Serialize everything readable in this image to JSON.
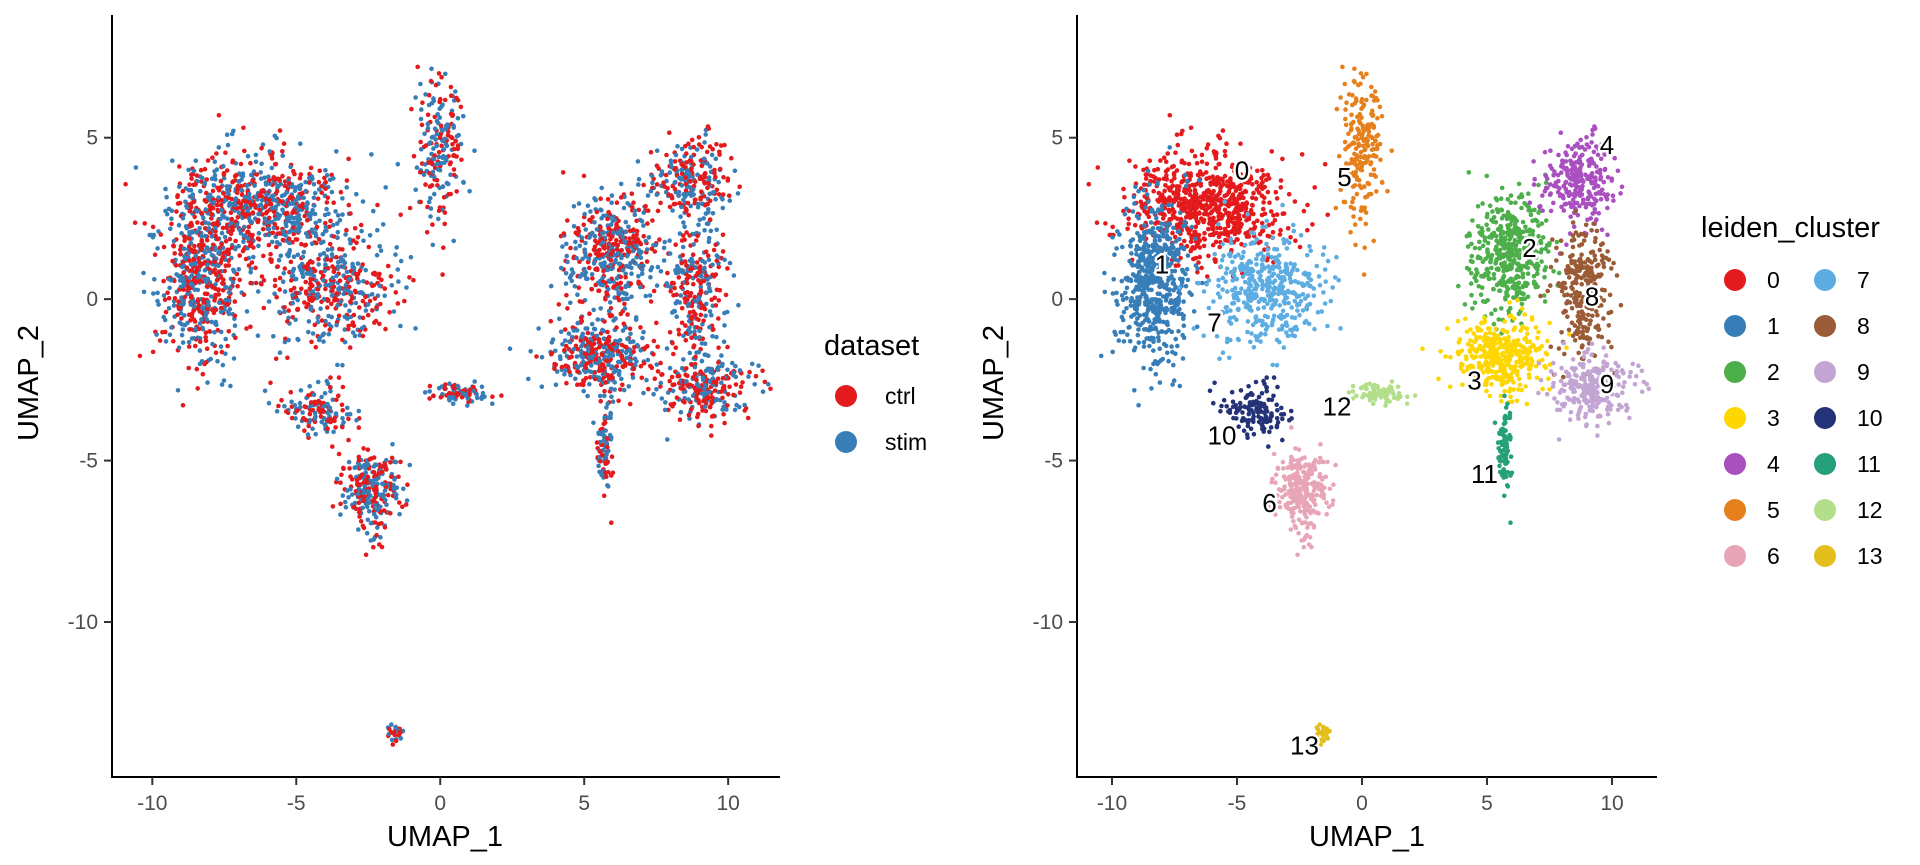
{
  "chart_data": [
    {
      "type": "scatter",
      "title": "",
      "xlabel": "UMAP_1",
      "ylabel": "UMAP_2",
      "xlim": [
        -11.4,
        11.8
      ],
      "ylim": [
        -14.8,
        8.8
      ],
      "xticks": [
        -10,
        -5,
        0,
        5,
        10
      ],
      "yticks": [
        -10,
        -5,
        0,
        5
      ],
      "xtick_labels": [
        "-10",
        "-5",
        "0",
        "5",
        "10"
      ],
      "ytick_labels": [
        "-10",
        "-5",
        "0",
        "5"
      ],
      "grid": false,
      "legend_position": "right",
      "legend_title": "dataset",
      "color_by": "dataset",
      "series": [
        {
          "name": "ctrl",
          "color": "#E41A1C"
        },
        {
          "name": "stim",
          "color": "#377EB8"
        }
      ],
      "regions": [
        {
          "name": "0",
          "center": [
            -6.2,
            2.9
          ],
          "spread": [
            1.9,
            1.0
          ],
          "count": 700
        },
        {
          "name": "1",
          "center": [
            -8.3,
            0.6
          ],
          "spread": [
            0.9,
            1.6
          ],
          "count": 550
        },
        {
          "name": "2",
          "center": [
            5.9,
            1.4
          ],
          "spread": [
            1.0,
            1.1
          ],
          "count": 450
        },
        {
          "name": "3",
          "center": [
            5.5,
            -1.8
          ],
          "spread": [
            1.2,
            0.7
          ],
          "count": 380
        },
        {
          "name": "4",
          "center": [
            8.7,
            3.6
          ],
          "spread": [
            0.8,
            0.9
          ],
          "count": 260
        },
        {
          "name": "5",
          "center": [
            0.0,
            4.6
          ],
          "spread": [
            0.5,
            1.4
          ],
          "count": 200
        },
        {
          "name": "6",
          "center": [
            -2.4,
            -5.9
          ],
          "spread": [
            0.6,
            0.8
          ],
          "count": 260
        },
        {
          "name": "7",
          "center": [
            -3.8,
            0.3
          ],
          "spread": [
            1.4,
            1.0
          ],
          "count": 420
        },
        {
          "name": "8",
          "center": [
            8.8,
            0.3
          ],
          "spread": [
            0.7,
            1.3
          ],
          "count": 260
        },
        {
          "name": "9",
          "center": [
            9.3,
            -2.7
          ],
          "spread": [
            1.0,
            0.7
          ],
          "count": 260
        },
        {
          "name": "10",
          "center": [
            -4.3,
            -3.4
          ],
          "spread": [
            0.8,
            0.5
          ],
          "count": 140
        },
        {
          "name": "11",
          "center": [
            5.7,
            -4.6
          ],
          "spread": [
            0.2,
            0.9
          ],
          "count": 90
        },
        {
          "name": "12",
          "center": [
            0.7,
            -2.9
          ],
          "spread": [
            0.7,
            0.2
          ],
          "count": 80
        },
        {
          "name": "13",
          "center": [
            -1.5,
            -13.4
          ],
          "spread": [
            0.2,
            0.2
          ],
          "count": 25
        }
      ]
    },
    {
      "type": "scatter",
      "title": "",
      "xlabel": "UMAP_1",
      "ylabel": "UMAP_2",
      "xlim": [
        -11.4,
        11.8
      ],
      "ylim": [
        -14.8,
        8.8
      ],
      "xticks": [
        -10,
        -5,
        0,
        5,
        10
      ],
      "yticks": [
        -10,
        -5,
        0,
        5
      ],
      "xtick_labels": [
        "-10",
        "-5",
        "0",
        "5",
        "10"
      ],
      "ytick_labels": [
        "-10",
        "-5",
        "0",
        "5"
      ],
      "grid": false,
      "legend_position": "right",
      "legend_title": "leiden_cluster",
      "legend_columns": 2,
      "color_by": "leiden_cluster",
      "series": [
        {
          "name": "0",
          "color": "#E41A1C",
          "label_pos": [
            -4.8,
            3.7
          ]
        },
        {
          "name": "1",
          "color": "#377EB8",
          "label_pos": [
            -8.0,
            0.8
          ]
        },
        {
          "name": "2",
          "color": "#4DAF4A",
          "label_pos": [
            6.7,
            1.3
          ]
        },
        {
          "name": "3",
          "color": "#FFD700",
          "label_pos": [
            4.5,
            -2.8
          ]
        },
        {
          "name": "4",
          "color": "#A94FBF",
          "label_pos": [
            9.8,
            4.5
          ]
        },
        {
          "name": "5",
          "color": "#E6801D",
          "label_pos": [
            -0.7,
            3.5
          ]
        },
        {
          "name": "6",
          "color": "#E8A5B8",
          "label_pos": [
            -3.7,
            -6.6
          ]
        },
        {
          "name": "7",
          "color": "#5DADE2",
          "label_pos": [
            -5.9,
            -1.0
          ]
        },
        {
          "name": "8",
          "color": "#9A5B36",
          "label_pos": [
            9.2,
            -0.2
          ]
        },
        {
          "name": "9",
          "color": "#C2A5D3",
          "label_pos": [
            9.8,
            -2.9
          ]
        },
        {
          "name": "10",
          "color": "#243277",
          "label_pos": [
            -5.6,
            -4.5
          ]
        },
        {
          "name": "11",
          "color": "#25A07B",
          "label_pos": [
            4.9,
            -5.7
          ]
        },
        {
          "name": "12",
          "color": "#B3DE8A",
          "label_pos": [
            -1.0,
            -3.6
          ]
        },
        {
          "name": "13",
          "color": "#E2BF1A",
          "label_pos": [
            -2.3,
            -14.1
          ]
        }
      ]
    }
  ]
}
